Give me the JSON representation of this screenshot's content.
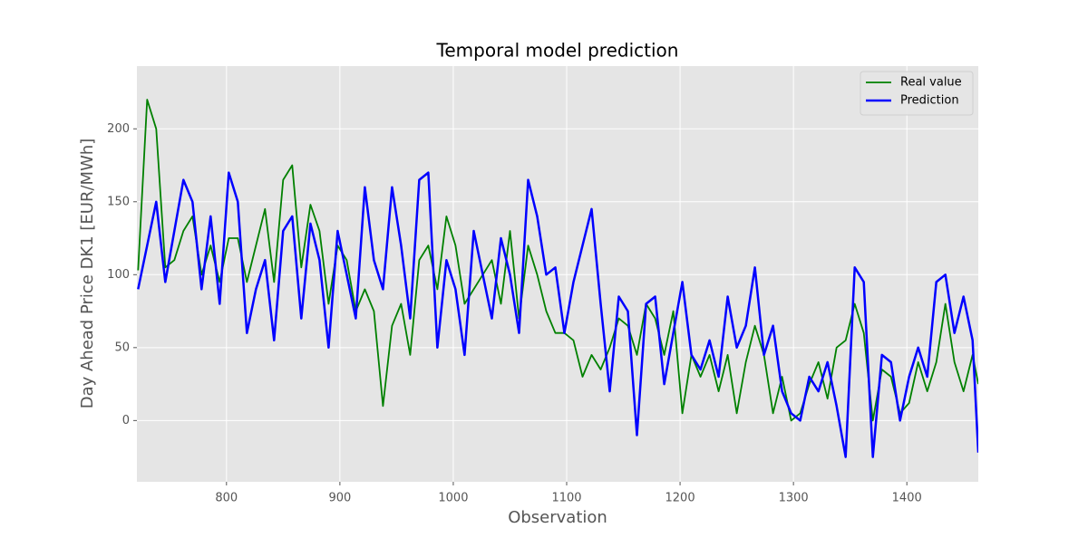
{
  "chart_data": {
    "type": "line",
    "title": "Temporal model prediction",
    "x_label": "Observation",
    "y_label": "Day Ahead Price DK1 [EUR/MWh]",
    "x": [
      722,
      730,
      738,
      746,
      754,
      762,
      770,
      778,
      786,
      794,
      802,
      810,
      818,
      826,
      834,
      842,
      850,
      858,
      866,
      874,
      882,
      890,
      898,
      906,
      914,
      922,
      930,
      938,
      946,
      954,
      962,
      970,
      978,
      986,
      994,
      1002,
      1010,
      1018,
      1026,
      1034,
      1042,
      1050,
      1058,
      1066,
      1074,
      1082,
      1090,
      1098,
      1106,
      1114,
      1122,
      1130,
      1138,
      1146,
      1154,
      1162,
      1170,
      1178,
      1186,
      1194,
      1202,
      1210,
      1218,
      1226,
      1234,
      1242,
      1250,
      1258,
      1266,
      1274,
      1282,
      1290,
      1298,
      1306,
      1314,
      1322,
      1330,
      1338,
      1346,
      1354,
      1362,
      1370,
      1378,
      1386,
      1394,
      1402,
      1410,
      1418,
      1426,
      1434,
      1442,
      1450,
      1458,
      1463
    ],
    "series": [
      {
        "name": "Real value",
        "color": "#008000",
        "width": 1.8,
        "values": [
          103,
          220,
          200,
          105,
          110,
          130,
          140,
          100,
          120,
          95,
          125,
          125,
          95,
          120,
          145,
          95,
          165,
          175,
          105,
          148,
          130,
          80,
          120,
          110,
          75,
          90,
          75,
          10,
          65,
          80,
          45,
          110,
          120,
          90,
          140,
          120,
          80,
          90,
          100,
          110,
          80,
          130,
          70,
          120,
          100,
          75,
          60,
          60,
          55,
          30,
          45,
          35,
          50,
          70,
          65,
          45,
          80,
          70,
          45,
          75,
          5,
          45,
          30,
          45,
          20,
          45,
          5,
          40,
          65,
          45,
          5,
          30,
          0,
          5,
          25,
          40,
          15,
          50,
          55,
          80,
          60,
          0,
          35,
          30,
          5,
          12,
          40,
          20,
          40,
          80,
          40,
          20,
          45,
          25
        ]
      },
      {
        "name": "Prediction",
        "color": "#0000ff",
        "width": 2.5,
        "values": [
          90,
          120,
          150,
          95,
          130,
          165,
          150,
          90,
          140,
          80,
          170,
          150,
          60,
          90,
          110,
          55,
          130,
          140,
          70,
          135,
          110,
          50,
          130,
          100,
          70,
          160,
          110,
          90,
          160,
          120,
          70,
          165,
          170,
          50,
          110,
          90,
          45,
          130,
          100,
          70,
          125,
          100,
          60,
          165,
          140,
          100,
          105,
          60,
          95,
          120,
          145,
          80,
          20,
          85,
          75,
          -10,
          80,
          85,
          25,
          60,
          95,
          45,
          35,
          55,
          30,
          85,
          50,
          65,
          105,
          45,
          65,
          20,
          5,
          0,
          30,
          20,
          40,
          10,
          -25,
          105,
          95,
          -25,
          45,
          40,
          0,
          30,
          50,
          30,
          95,
          100,
          60,
          85,
          55,
          -22
        ]
      }
    ],
    "xlim": [
      721,
      1463
    ],
    "ylim": [
      -42,
      243
    ],
    "xticks": [
      800,
      900,
      1000,
      1100,
      1200,
      1300,
      1400
    ],
    "yticks": [
      0,
      50,
      100,
      150,
      200
    ],
    "grid": true,
    "legend": "upper right"
  }
}
